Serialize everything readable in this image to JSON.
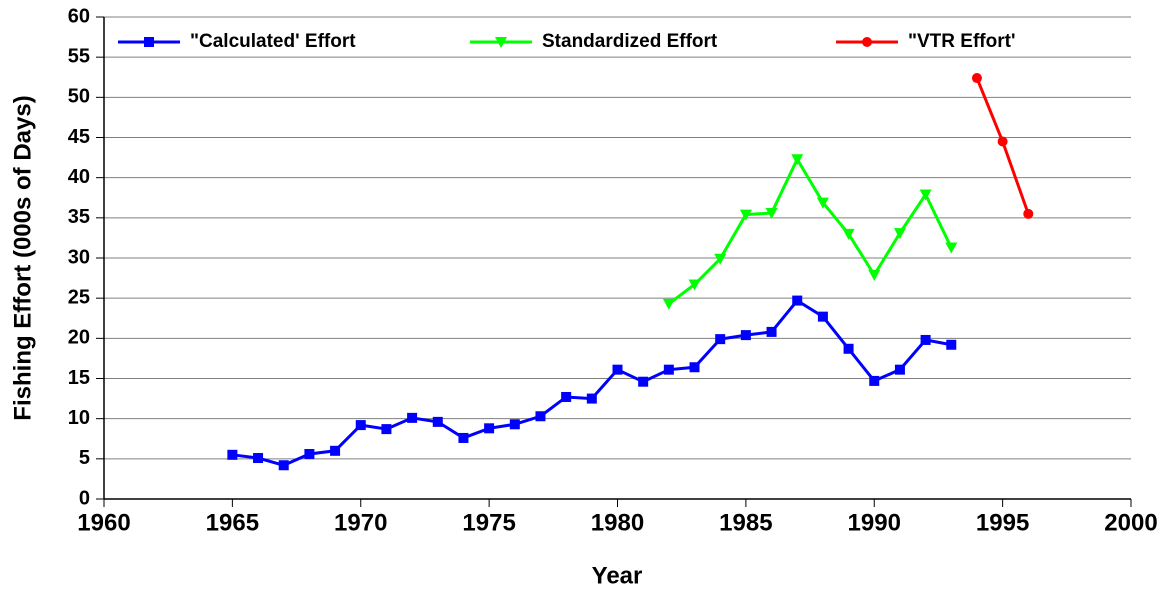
{
  "chart_data": {
    "type": "line",
    "xlabel": "Year",
    "ylabel": "Fishing Effort (000s of Days)",
    "xlim": [
      1960,
      2000
    ],
    "xticks": [
      1960,
      1965,
      1970,
      1975,
      1980,
      1985,
      1990,
      1995,
      2000
    ],
    "ylim": [
      0,
      60
    ],
    "yticks": [
      0,
      5,
      10,
      15,
      20,
      25,
      30,
      35,
      40,
      45,
      50,
      55,
      60
    ],
    "grid": true,
    "legend": "top",
    "series": [
      {
        "name": "\"Calculated' Effort",
        "color": "#0000ff",
        "marker": "square",
        "x": [
          1965,
          1966,
          1967,
          1968,
          1969,
          1970,
          1971,
          1972,
          1973,
          1974,
          1975,
          1976,
          1977,
          1978,
          1979,
          1980,
          1981,
          1982,
          1983,
          1984,
          1985,
          1986,
          1987,
          1988,
          1989,
          1990,
          1991,
          1992,
          1993
        ],
        "values": [
          5.5,
          5.1,
          4.2,
          5.6,
          6.0,
          9.2,
          8.7,
          10.1,
          9.6,
          7.6,
          8.8,
          9.3,
          10.3,
          12.7,
          12.5,
          16.1,
          14.6,
          16.1,
          16.4,
          19.9,
          20.4,
          20.8,
          24.7,
          22.7,
          18.7,
          14.7,
          16.1,
          19.8,
          19.2
        ]
      },
      {
        "name": "Standardized Effort",
        "color": "#00ff00",
        "marker": "triangle-down",
        "x": [
          1982,
          1983,
          1984,
          1985,
          1986,
          1987,
          1988,
          1989,
          1990,
          1991,
          1992,
          1993
        ],
        "values": [
          24.3,
          26.7,
          29.9,
          35.4,
          35.6,
          42.3,
          36.9,
          33.0,
          27.9,
          33.1,
          37.9,
          31.3
        ]
      },
      {
        "name": "\"VTR Effort'",
        "color": "#ff0000",
        "marker": "circle",
        "x": [
          1994,
          1995,
          1996
        ],
        "values": [
          52.4,
          44.5,
          35.5
        ]
      }
    ]
  }
}
